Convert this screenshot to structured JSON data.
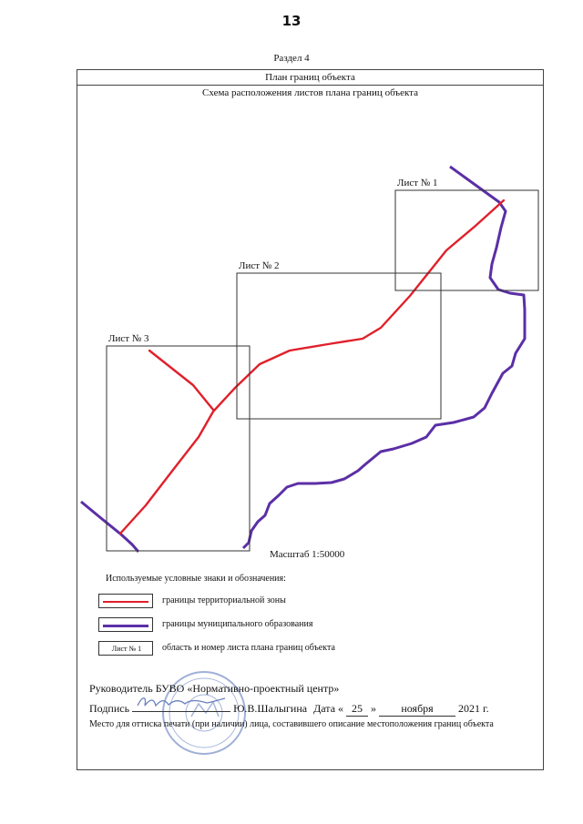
{
  "page": {
    "number": "13"
  },
  "section": "Раздел 4",
  "frame": {
    "title": "План границ объекта",
    "subtitle": "Схема расположения листов плана границ объекта"
  },
  "sheets": [
    {
      "label": "Лист № 1"
    },
    {
      "label": "Лист № 2"
    },
    {
      "label": "Лист № 3"
    }
  ],
  "scale": "Масштаб 1:50000",
  "legend": {
    "title": "Используемые условные знаки и обозначения:",
    "items": [
      {
        "sample": "",
        "description": "границы территориальной зоны",
        "color": "#e0202a"
      },
      {
        "sample": "",
        "description": "границы муниципального образования",
        "color": "#5b2fa6"
      },
      {
        "sample": "Лист № 1",
        "description": "область и номер листа плана границ объекта",
        "color": "#333333"
      }
    ]
  },
  "signature": {
    "head_label": "Руководитель БУВО «Нормативно-проектный центр»",
    "sign_label": "Подпись",
    "signer": "Ю.В.Шалыгина",
    "date_label": "Дата «",
    "day": "25",
    "quote_close": "»",
    "month": "ноября",
    "year": "2021 г.",
    "place_note": "Место для оттиска печати (при наличии) лица, составившего описание местоположения границ объекта"
  },
  "colors": {
    "zone": "#e0202a",
    "municipal": "#5b2fa6",
    "stamp": "#7f95c9"
  }
}
